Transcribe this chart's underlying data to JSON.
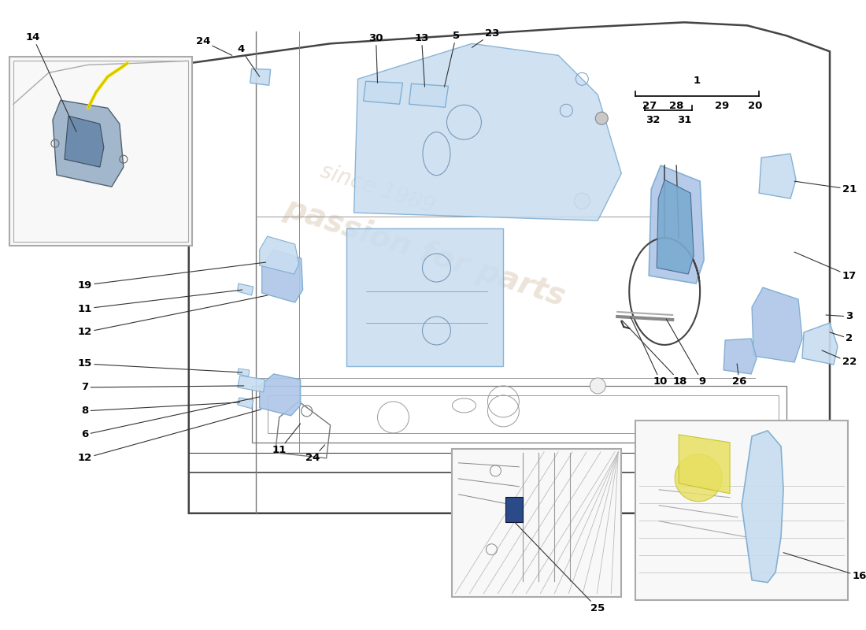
{
  "bg_color": "#ffffff",
  "blue_fill": "#aec6e8",
  "blue_fill_dark": "#7aaad0",
  "blue_fill_light": "#c8ddf0",
  "blue_part": "#8ab4d8",
  "line_color": "#444444",
  "part_line": "#555566",
  "label_fs": 9.5,
  "inset_bg": "#f8f8f8",
  "inset_border": "#aaaaaa",
  "watermark1": "passion for parts",
  "watermark2": "since 1989",
  "wm_color": "#e0d0c0",
  "wm_alpha": 0.6
}
